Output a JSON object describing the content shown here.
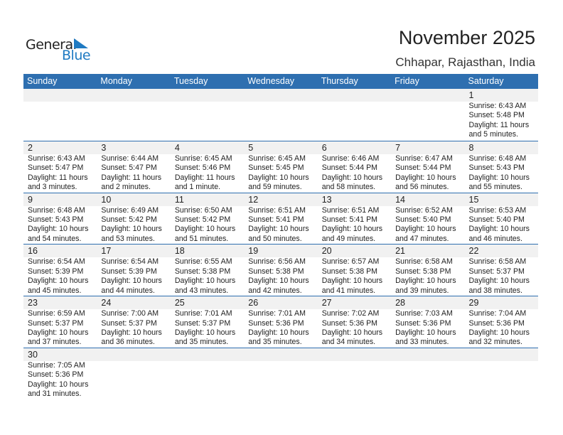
{
  "logo": {
    "text_general": "General",
    "text_blue": "Blue"
  },
  "title": "November 2025",
  "location": "Chhapar, Rajasthan, India",
  "colors": {
    "header": "#2e6fb0",
    "band": "#f1f1f1",
    "logo_blue": "#1f7ac2"
  },
  "weekdays": [
    "Sunday",
    "Monday",
    "Tuesday",
    "Wednesday",
    "Thursday",
    "Friday",
    "Saturday"
  ],
  "weeks": [
    [
      null,
      null,
      null,
      null,
      null,
      null,
      {
        "day": "1",
        "sunrise": "Sunrise: 6:43 AM",
        "sunset": "Sunset: 5:48 PM",
        "daylight1": "Daylight: 11 hours",
        "daylight2": "and 5 minutes."
      }
    ],
    [
      {
        "day": "2",
        "sunrise": "Sunrise: 6:43 AM",
        "sunset": "Sunset: 5:47 PM",
        "daylight1": "Daylight: 11 hours",
        "daylight2": "and 3 minutes."
      },
      {
        "day": "3",
        "sunrise": "Sunrise: 6:44 AM",
        "sunset": "Sunset: 5:47 PM",
        "daylight1": "Daylight: 11 hours",
        "daylight2": "and 2 minutes."
      },
      {
        "day": "4",
        "sunrise": "Sunrise: 6:45 AM",
        "sunset": "Sunset: 5:46 PM",
        "daylight1": "Daylight: 11 hours",
        "daylight2": "and 1 minute."
      },
      {
        "day": "5",
        "sunrise": "Sunrise: 6:45 AM",
        "sunset": "Sunset: 5:45 PM",
        "daylight1": "Daylight: 10 hours",
        "daylight2": "and 59 minutes."
      },
      {
        "day": "6",
        "sunrise": "Sunrise: 6:46 AM",
        "sunset": "Sunset: 5:44 PM",
        "daylight1": "Daylight: 10 hours",
        "daylight2": "and 58 minutes."
      },
      {
        "day": "7",
        "sunrise": "Sunrise: 6:47 AM",
        "sunset": "Sunset: 5:44 PM",
        "daylight1": "Daylight: 10 hours",
        "daylight2": "and 56 minutes."
      },
      {
        "day": "8",
        "sunrise": "Sunrise: 6:48 AM",
        "sunset": "Sunset: 5:43 PM",
        "daylight1": "Daylight: 10 hours",
        "daylight2": "and 55 minutes."
      }
    ],
    [
      {
        "day": "9",
        "sunrise": "Sunrise: 6:48 AM",
        "sunset": "Sunset: 5:43 PM",
        "daylight1": "Daylight: 10 hours",
        "daylight2": "and 54 minutes."
      },
      {
        "day": "10",
        "sunrise": "Sunrise: 6:49 AM",
        "sunset": "Sunset: 5:42 PM",
        "daylight1": "Daylight: 10 hours",
        "daylight2": "and 53 minutes."
      },
      {
        "day": "11",
        "sunrise": "Sunrise: 6:50 AM",
        "sunset": "Sunset: 5:42 PM",
        "daylight1": "Daylight: 10 hours",
        "daylight2": "and 51 minutes."
      },
      {
        "day": "12",
        "sunrise": "Sunrise: 6:51 AM",
        "sunset": "Sunset: 5:41 PM",
        "daylight1": "Daylight: 10 hours",
        "daylight2": "and 50 minutes."
      },
      {
        "day": "13",
        "sunrise": "Sunrise: 6:51 AM",
        "sunset": "Sunset: 5:41 PM",
        "daylight1": "Daylight: 10 hours",
        "daylight2": "and 49 minutes."
      },
      {
        "day": "14",
        "sunrise": "Sunrise: 6:52 AM",
        "sunset": "Sunset: 5:40 PM",
        "daylight1": "Daylight: 10 hours",
        "daylight2": "and 47 minutes."
      },
      {
        "day": "15",
        "sunrise": "Sunrise: 6:53 AM",
        "sunset": "Sunset: 5:40 PM",
        "daylight1": "Daylight: 10 hours",
        "daylight2": "and 46 minutes."
      }
    ],
    [
      {
        "day": "16",
        "sunrise": "Sunrise: 6:54 AM",
        "sunset": "Sunset: 5:39 PM",
        "daylight1": "Daylight: 10 hours",
        "daylight2": "and 45 minutes."
      },
      {
        "day": "17",
        "sunrise": "Sunrise: 6:54 AM",
        "sunset": "Sunset: 5:39 PM",
        "daylight1": "Daylight: 10 hours",
        "daylight2": "and 44 minutes."
      },
      {
        "day": "18",
        "sunrise": "Sunrise: 6:55 AM",
        "sunset": "Sunset: 5:38 PM",
        "daylight1": "Daylight: 10 hours",
        "daylight2": "and 43 minutes."
      },
      {
        "day": "19",
        "sunrise": "Sunrise: 6:56 AM",
        "sunset": "Sunset: 5:38 PM",
        "daylight1": "Daylight: 10 hours",
        "daylight2": "and 42 minutes."
      },
      {
        "day": "20",
        "sunrise": "Sunrise: 6:57 AM",
        "sunset": "Sunset: 5:38 PM",
        "daylight1": "Daylight: 10 hours",
        "daylight2": "and 41 minutes."
      },
      {
        "day": "21",
        "sunrise": "Sunrise: 6:58 AM",
        "sunset": "Sunset: 5:38 PM",
        "daylight1": "Daylight: 10 hours",
        "daylight2": "and 39 minutes."
      },
      {
        "day": "22",
        "sunrise": "Sunrise: 6:58 AM",
        "sunset": "Sunset: 5:37 PM",
        "daylight1": "Daylight: 10 hours",
        "daylight2": "and 38 minutes."
      }
    ],
    [
      {
        "day": "23",
        "sunrise": "Sunrise: 6:59 AM",
        "sunset": "Sunset: 5:37 PM",
        "daylight1": "Daylight: 10 hours",
        "daylight2": "and 37 minutes."
      },
      {
        "day": "24",
        "sunrise": "Sunrise: 7:00 AM",
        "sunset": "Sunset: 5:37 PM",
        "daylight1": "Daylight: 10 hours",
        "daylight2": "and 36 minutes."
      },
      {
        "day": "25",
        "sunrise": "Sunrise: 7:01 AM",
        "sunset": "Sunset: 5:37 PM",
        "daylight1": "Daylight: 10 hours",
        "daylight2": "and 35 minutes."
      },
      {
        "day": "26",
        "sunrise": "Sunrise: 7:01 AM",
        "sunset": "Sunset: 5:36 PM",
        "daylight1": "Daylight: 10 hours",
        "daylight2": "and 35 minutes."
      },
      {
        "day": "27",
        "sunrise": "Sunrise: 7:02 AM",
        "sunset": "Sunset: 5:36 PM",
        "daylight1": "Daylight: 10 hours",
        "daylight2": "and 34 minutes."
      },
      {
        "day": "28",
        "sunrise": "Sunrise: 7:03 AM",
        "sunset": "Sunset: 5:36 PM",
        "daylight1": "Daylight: 10 hours",
        "daylight2": "and 33 minutes."
      },
      {
        "day": "29",
        "sunrise": "Sunrise: 7:04 AM",
        "sunset": "Sunset: 5:36 PM",
        "daylight1": "Daylight: 10 hours",
        "daylight2": "and 32 minutes."
      }
    ],
    [
      {
        "day": "30",
        "sunrise": "Sunrise: 7:05 AM",
        "sunset": "Sunset: 5:36 PM",
        "daylight1": "Daylight: 10 hours",
        "daylight2": "and 31 minutes."
      },
      null,
      null,
      null,
      null,
      null,
      null
    ]
  ]
}
